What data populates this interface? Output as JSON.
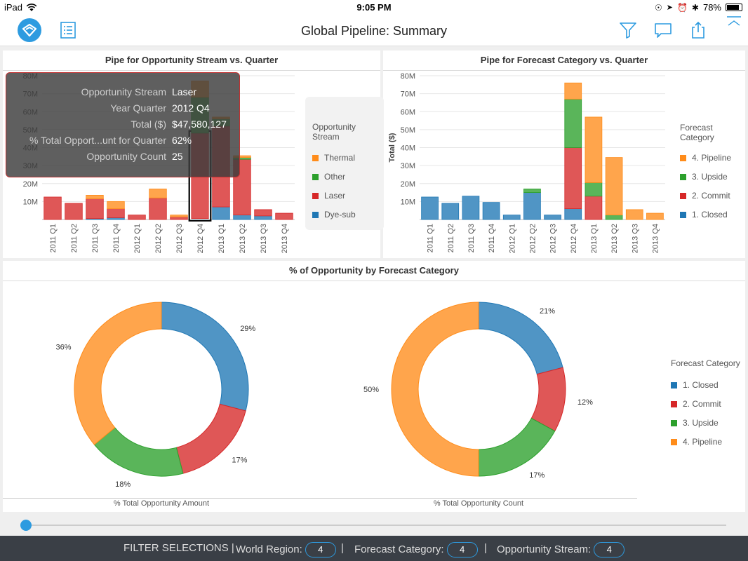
{
  "status_bar": {
    "device": "iPad",
    "time": "9:05 PM",
    "battery": "78%"
  },
  "header": {
    "title": "Global Pipeline: Summary"
  },
  "icons": {
    "logo": "app-logo-icon",
    "list": "list-icon",
    "filter": "filter-icon",
    "comment": "comment-icon",
    "share": "share-icon",
    "collapse": "chevron-up-icon"
  },
  "colors": {
    "blue": "#2d9be0",
    "thermal": "#ff8c1a",
    "other": "#2ca02c",
    "laser": "#d62728",
    "dye": "#1f77b4"
  },
  "left_chart": {
    "title": "Pipe for Opportunity Stream vs. Quarter",
    "tooltip": [
      {
        "key": "Opportunity Stream",
        "value": "Laser"
      },
      {
        "key": "Year Quarter",
        "value": "2012 Q4"
      },
      {
        "key": "Total ($)",
        "value": "$47,580,127"
      },
      {
        "key": "% Total Opport...unt for Quarter",
        "value": "62%"
      },
      {
        "key": "Opportunity Count",
        "value": "25"
      }
    ],
    "legend_title": "Opportunity Stream",
    "legend": [
      {
        "label": "Thermal",
        "color": "#ff8c1a"
      },
      {
        "label": "Other",
        "color": "#2ca02c"
      },
      {
        "label": "Laser",
        "color": "#d62728"
      },
      {
        "label": "Dye-sub",
        "color": "#1f77b4"
      }
    ]
  },
  "right_chart": {
    "title": "Pipe for Forecast Category vs. Quarter",
    "legend_title": "Forecast Category",
    "legend": [
      {
        "label": "4. Pipeline",
        "color": "#ff8c1a"
      },
      {
        "label": "3. Upside",
        "color": "#2ca02c"
      },
      {
        "label": "2. Commit",
        "color": "#d62728"
      },
      {
        "label": "1. Closed",
        "color": "#1f77b4"
      }
    ]
  },
  "donut_panel": {
    "title": "% of Opportunity by Forecast Category",
    "legend_title": "Forecast Category",
    "legend": [
      {
        "label": "1. Closed",
        "color": "#1f77b4"
      },
      {
        "label": "2. Commit",
        "color": "#d62728"
      },
      {
        "label": "3. Upside",
        "color": "#2ca02c"
      },
      {
        "label": "4. Pipeline",
        "color": "#ff8c1a"
      }
    ]
  },
  "filter_bar": {
    "label": "FILTER SELECTIONS |",
    "sep": "|",
    "items": [
      {
        "label": "World Region:",
        "value": "4"
      },
      {
        "label": "Forecast Category:",
        "value": "4"
      },
      {
        "label": "Opportunity Stream:",
        "value": "4"
      }
    ]
  },
  "chart_data": [
    {
      "type": "bar",
      "stacked": true,
      "title": "Pipe for Opportunity Stream vs. Quarter",
      "categories": [
        "2011 Q1",
        "2011 Q2",
        "2011 Q3",
        "2011 Q4",
        "2012 Q1",
        "2012 Q2",
        "2012 Q3",
        "2012 Q4",
        "2013 Q1",
        "2013 Q2",
        "2013 Q3",
        "2013 Q4"
      ],
      "yticks": [
        "10M",
        "20M",
        "30M",
        "40M",
        "50M",
        "60M",
        "70M",
        "80M"
      ],
      "ylim": [
        0,
        80000000
      ],
      "series": [
        {
          "name": "Dye-sub",
          "color": "#1f77b4",
          "values": [
            0,
            0,
            500000,
            1000000,
            0,
            0,
            0,
            500000,
            7000000,
            2500000,
            2000000,
            0
          ]
        },
        {
          "name": "Laser",
          "color": "#d62728",
          "values": [
            12500000,
            9000000,
            11000000,
            5000000,
            2500000,
            12000000,
            1500000,
            47580127,
            45000000,
            31000000,
            3500000,
            3500000
          ]
        },
        {
          "name": "Other",
          "color": "#2ca02c",
          "values": [
            0,
            0,
            0,
            0,
            0,
            0,
            0,
            20000000,
            4000000,
            1000000,
            0,
            0
          ]
        },
        {
          "name": "Thermal",
          "color": "#ff8c1a",
          "values": [
            0,
            0,
            2000000,
            4000000,
            0,
            5000000,
            1000000,
            9000000,
            1000000,
            1000000,
            0,
            0
          ]
        }
      ],
      "highlight": {
        "series": "Laser",
        "category": "2012 Q4"
      },
      "legend_position": "right",
      "grid": true
    },
    {
      "type": "bar",
      "stacked": true,
      "title": "Pipe for Forecast Category vs. Quarter",
      "ylabel": "Total ($)",
      "categories": [
        "2011 Q1",
        "2011 Q2",
        "2011 Q3",
        "2011 Q4",
        "2012 Q1",
        "2012 Q2",
        "2012 Q3",
        "2012 Q4",
        "2013 Q1",
        "2013 Q2",
        "2013 Q3",
        "2013 Q4"
      ],
      "yticks": [
        "10M",
        "20M",
        "30M",
        "40M",
        "50M",
        "60M",
        "70M",
        "80M"
      ],
      "ylim": [
        0,
        80000000
      ],
      "series": [
        {
          "name": "1. Closed",
          "color": "#1f77b4",
          "values": [
            12500000,
            9000000,
            13000000,
            9500000,
            2500000,
            15000000,
            2500000,
            6000000,
            0,
            0,
            0,
            0
          ]
        },
        {
          "name": "2. Commit",
          "color": "#d62728",
          "values": [
            0,
            0,
            0,
            0,
            0,
            0,
            0,
            34000000,
            13000000,
            0,
            0,
            0
          ]
        },
        {
          "name": "3. Upside",
          "color": "#2ca02c",
          "values": [
            0,
            0,
            0,
            0,
            0,
            2000000,
            0,
            27000000,
            7500000,
            2500000,
            0,
            0
          ]
        },
        {
          "name": "4. Pipeline",
          "color": "#ff8c1a",
          "values": [
            0,
            0,
            0,
            0,
            0,
            0,
            0,
            9000000,
            36500000,
            32000000,
            5500000,
            3500000
          ]
        }
      ],
      "legend_position": "right",
      "grid": true
    },
    {
      "type": "pie",
      "donut": true,
      "xlabel": "% Total Opportunity Amount",
      "slices": [
        {
          "label": "1. Closed",
          "value": 29,
          "text": "29%",
          "color": "#1f77b4"
        },
        {
          "label": "2. Commit",
          "value": 17,
          "text": "17%",
          "color": "#d62728"
        },
        {
          "label": "3. Upside",
          "value": 18,
          "text": "18%",
          "color": "#2ca02c"
        },
        {
          "label": "4. Pipeline",
          "value": 36,
          "text": "36%",
          "color": "#ff8c1a"
        }
      ]
    },
    {
      "type": "pie",
      "donut": true,
      "xlabel": "% Total Opportunity Count",
      "slices": [
        {
          "label": "1. Closed",
          "value": 21,
          "text": "21%",
          "color": "#1f77b4"
        },
        {
          "label": "2. Commit",
          "value": 12,
          "text": "12%",
          "color": "#d62728"
        },
        {
          "label": "3. Upside",
          "value": 17,
          "text": "17%",
          "color": "#2ca02c"
        },
        {
          "label": "4. Pipeline",
          "value": 50,
          "text": "50%",
          "color": "#ff8c1a"
        }
      ]
    }
  ]
}
